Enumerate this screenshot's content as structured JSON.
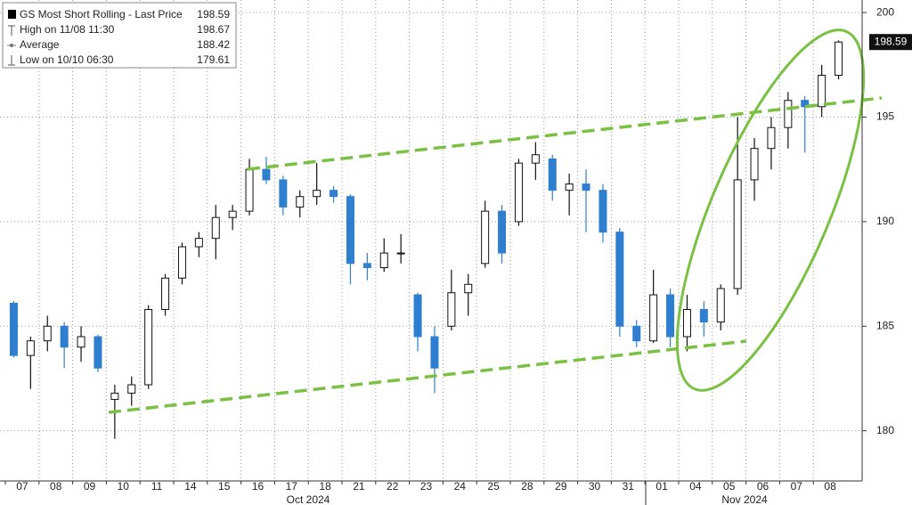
{
  "chart_data": {
    "type": "candlestick",
    "legend": {
      "title": "GS Most Short Rolling - Last Price",
      "last": 198.59,
      "items": [
        {
          "label": "High on 11/08 11:30",
          "value": 198.67
        },
        {
          "label": "Average",
          "value": 188.42
        },
        {
          "label": "Low on 10/10 06:30",
          "value": 179.61
        }
      ]
    },
    "categories": [
      "07",
      "08",
      "09",
      "10",
      "11",
      "14",
      "15",
      "16",
      "17",
      "18",
      "21",
      "22",
      "23",
      "24",
      "25",
      "28",
      "29",
      "30",
      "31",
      "01",
      "04",
      "05",
      "06",
      "07",
      "08"
    ],
    "month_labels": [
      "Oct 2024",
      "Nov 2024"
    ],
    "open": [
      186.1,
      183.6,
      184.3,
      185.0,
      184.0,
      184.5,
      181.5,
      181.8,
      182.2,
      185.8,
      187.3,
      188.8,
      189.2,
      190.2,
      190.5,
      192.5,
      192.0,
      190.7,
      191.2,
      191.5,
      191.2,
      188.0,
      187.8,
      188.5,
      186.5,
      184.5,
      185.0,
      186.6,
      188.0,
      190.5,
      190.0,
      192.8,
      193.0,
      191.5,
      191.8,
      191.5,
      189.5,
      185.0,
      184.3,
      186.5,
      184.5,
      185.8,
      185.2,
      186.8,
      192.0,
      193.5,
      194.5,
      195.8,
      195.5,
      197.0
    ],
    "high": [
      186.2,
      184.5,
      185.5,
      185.2,
      185.0,
      184.6,
      182.2,
      182.6,
      186.0,
      187.5,
      189.0,
      189.5,
      190.8,
      190.8,
      193.0,
      193.1,
      192.2,
      191.5,
      192.8,
      191.7,
      191.3,
      188.5,
      189.2,
      189.4,
      186.6,
      185.0,
      187.7,
      187.5,
      191.0,
      190.8,
      193.0,
      193.8,
      193.2,
      192.3,
      192.5,
      191.8,
      189.7,
      185.3,
      187.7,
      186.8,
      186.5,
      186.2,
      187.0,
      195.0,
      194.0,
      195.0,
      196.2,
      196.0,
      197.5,
      198.67
    ],
    "low": [
      183.5,
      182.0,
      183.8,
      183.0,
      183.3,
      182.8,
      179.61,
      181.2,
      182.0,
      185.5,
      187.0,
      188.3,
      188.2,
      189.6,
      190.3,
      191.8,
      190.3,
      190.2,
      190.8,
      190.9,
      187.0,
      187.2,
      187.6,
      188.0,
      183.8,
      181.8,
      184.8,
      185.5,
      187.8,
      188.0,
      189.8,
      192.0,
      191.0,
      190.3,
      189.5,
      189.0,
      184.5,
      184.0,
      184.2,
      184.0,
      183.8,
      184.5,
      184.8,
      186.5,
      191.0,
      192.5,
      193.5,
      193.3,
      195.0,
      196.8
    ],
    "close": [
      183.6,
      184.3,
      185.0,
      184.0,
      184.5,
      183.0,
      181.8,
      182.2,
      185.8,
      187.3,
      188.8,
      189.2,
      190.2,
      190.5,
      192.5,
      192.0,
      190.7,
      191.2,
      191.5,
      191.2,
      188.0,
      187.8,
      188.5,
      188.5,
      184.5,
      183.0,
      186.6,
      187.0,
      190.5,
      188.5,
      192.8,
      193.2,
      191.5,
      191.8,
      191.5,
      189.5,
      185.0,
      184.3,
      186.5,
      184.5,
      185.8,
      185.2,
      186.8,
      192.0,
      193.5,
      194.5,
      195.8,
      195.5,
      197.0,
      198.59
    ],
    "up_color": "#ffffff",
    "down_color": "#2f7fd0",
    "ylim": [
      177.6,
      200.6
    ],
    "yticks": [
      180,
      185,
      190,
      195,
      200
    ],
    "grid": true
  }
}
